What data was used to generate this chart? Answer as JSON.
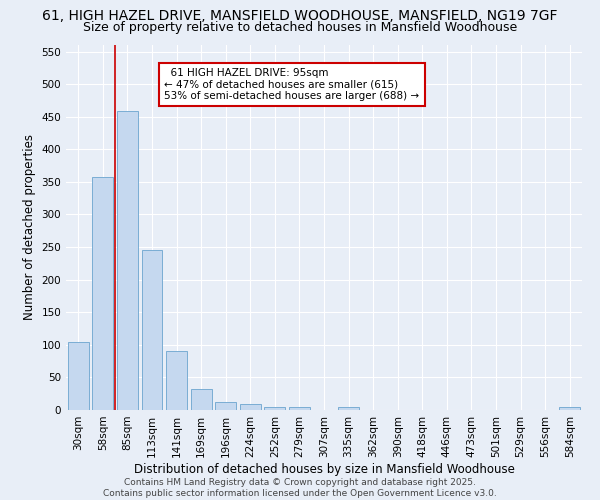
{
  "title": "61, HIGH HAZEL DRIVE, MANSFIELD WOODHOUSE, MANSFIELD, NG19 7GF",
  "subtitle": "Size of property relative to detached houses in Mansfield Woodhouse",
  "xlabel": "Distribution of detached houses by size in Mansfield Woodhouse",
  "ylabel": "Number of detached properties",
  "footer": "Contains HM Land Registry data © Crown copyright and database right 2025.\nContains public sector information licensed under the Open Government Licence v3.0.",
  "categories": [
    "30sqm",
    "58sqm",
    "85sqm",
    "113sqm",
    "141sqm",
    "169sqm",
    "196sqm",
    "224sqm",
    "252sqm",
    "279sqm",
    "307sqm",
    "335sqm",
    "362sqm",
    "390sqm",
    "418sqm",
    "446sqm",
    "473sqm",
    "501sqm",
    "529sqm",
    "556sqm",
    "584sqm"
  ],
  "values": [
    105,
    357,
    458,
    246,
    90,
    32,
    12,
    9,
    5,
    5,
    0,
    5,
    0,
    0,
    0,
    0,
    0,
    0,
    0,
    0,
    5
  ],
  "bar_color": "#c5d8ef",
  "bar_edge_color": "#7aadd4",
  "annotation_text": "  61 HIGH HAZEL DRIVE: 95sqm\n← 47% of detached houses are smaller (615)\n53% of semi-detached houses are larger (688) →",
  "vline_bin_index": 1.5,
  "ylim": [
    0,
    560
  ],
  "yticks": [
    0,
    50,
    100,
    150,
    200,
    250,
    300,
    350,
    400,
    450,
    500,
    550
  ],
  "background_color": "#e8eef7",
  "grid_color": "#ffffff",
  "annotation_box_color": "#ffffff",
  "annotation_box_edge": "#cc0000",
  "vline_color": "#cc0000",
  "title_fontsize": 10,
  "subtitle_fontsize": 9,
  "axis_label_fontsize": 8.5,
  "tick_fontsize": 7.5,
  "annotation_fontsize": 7.5,
  "footer_fontsize": 6.5
}
